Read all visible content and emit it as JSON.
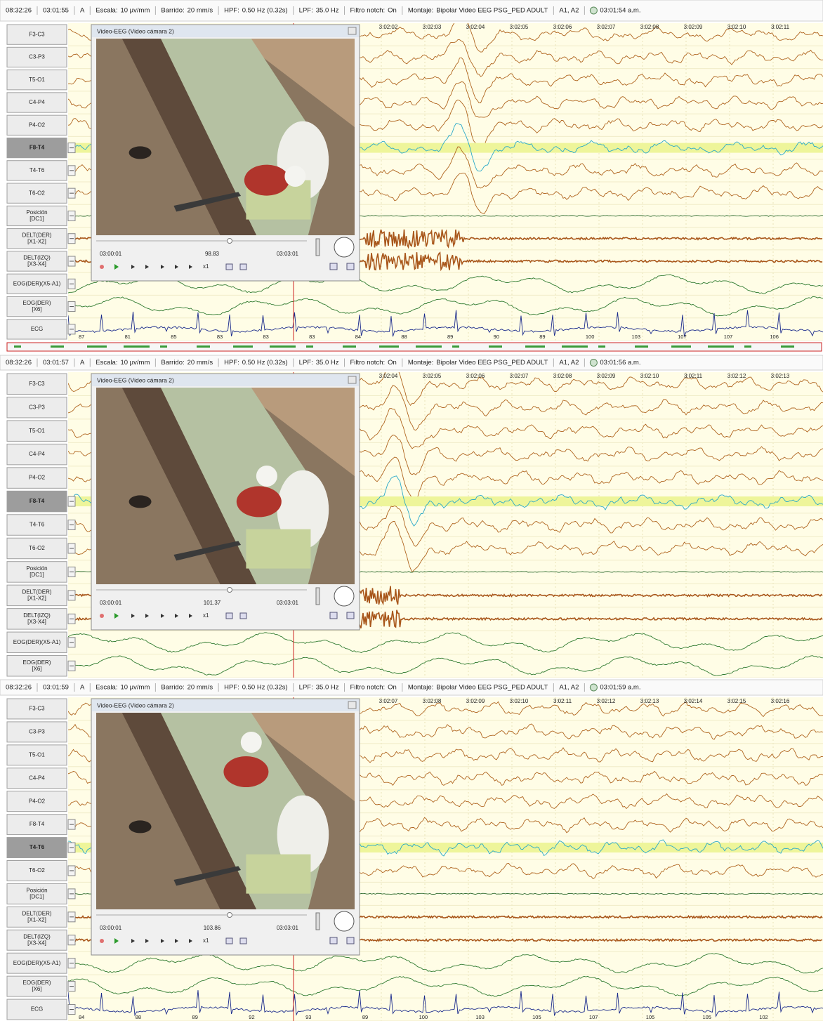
{
  "panels": [
    {
      "toolbar": [
        "08:32:26",
        "03:01:55",
        "A",
        "Escala:",
        "10 µv/mm",
        "Barrido:",
        "20 mm/s",
        "HPF:",
        "0.50 Hz (0.32s)",
        "LPF:",
        "35.0 Hz",
        "Filtro notch:",
        "On",
        "Montaje:",
        "Bipolar Video EEG PSG_PED ADULT",
        "A1, A2",
        "03:01:54 a.m."
      ],
      "channels": [
        [
          "F3-C3"
        ],
        [
          "C3-P3"
        ],
        [
          "T5-O1"
        ],
        [
          "C4-P4"
        ],
        [
          "P4-O2"
        ],
        [
          "F8-T4"
        ],
        [
          "T4-T6"
        ],
        [
          "T6-O2"
        ],
        [
          "Posición",
          "[DC1]"
        ],
        [
          "DELT(DER)",
          "[X1-X2]"
        ],
        [
          "DELT(IZQ)",
          "[X3-X4]"
        ],
        [
          "EOG(DER)(X5-A1)"
        ],
        [
          "EOG(DER)",
          "[X6]"
        ],
        [
          "ECG"
        ]
      ],
      "selected_channel": 5,
      "time_ticks": [
        "3:02:02",
        "3:02:03",
        "3:02:04",
        "3:02:05",
        "3:02:06",
        "3:02:07",
        "3:02:08",
        "3:02:09",
        "3:02:10",
        "3:02:11"
      ],
      "video": {
        "title": "Video-EEG (Video cámara 2)",
        "start": "03:00:01",
        "current": "98.83",
        "end": "03:03:01",
        "speed": "x1"
      },
      "ecg_labels": [
        "87",
        "81",
        "85",
        "83",
        "83",
        "83",
        "84",
        "88",
        "89",
        "90",
        "89",
        "100",
        "103",
        "107",
        "107",
        "106"
      ]
    },
    {
      "toolbar": [
        "08:32:26",
        "03:01:57",
        "A",
        "Escala:",
        "10 µv/mm",
        "Barrido:",
        "20 mm/s",
        "HPF:",
        "0.50 Hz (0.32s)",
        "LPF:",
        "35.0 Hz",
        "Filtro notch:",
        "On",
        "Montaje:",
        "Bipolar Video EEG PSG_PED ADULT",
        "A1, A2",
        "03:01:56 a.m."
      ],
      "channels": [
        [
          "F3-C3"
        ],
        [
          "C3-P3"
        ],
        [
          "T5-O1"
        ],
        [
          "C4-P4"
        ],
        [
          "P4-O2"
        ],
        [
          "F8-T4"
        ],
        [
          "T4-T6"
        ],
        [
          "T6-O2"
        ],
        [
          "Posición",
          "[DC1]"
        ],
        [
          "DELT(DER)",
          "[X1-X2]"
        ],
        [
          "DELT(IZQ)",
          "[X3-X4]"
        ],
        [
          "EOG(DER)(X5-A1)"
        ],
        [
          "EOG(DER)",
          "[X6]"
        ]
      ],
      "selected_channel": 5,
      "time_ticks": [
        "3:02:04",
        "3:02:05",
        "3:02:06",
        "3:02:07",
        "3:02:08",
        "3:02:09",
        "3:02:10",
        "3:02:11",
        "3:02:12",
        "3:02:13"
      ],
      "video": {
        "title": "Video-EEG (Video cámara 2)",
        "start": "03:00:01",
        "current": "101.37",
        "end": "03:03:01",
        "speed": "x1"
      }
    },
    {
      "toolbar": [
        "08:32:26",
        "03:01:59",
        "A",
        "Escala:",
        "10 µv/mm",
        "Barrido:",
        "20 mm/s",
        "HPF:",
        "0.50 Hz (0.32s)",
        "LPF:",
        "35.0 Hz",
        "Filtro notch:",
        "On",
        "Montaje:",
        "Bipolar Video EEG PSG_PED ADULT",
        "A1, A2",
        "03:01:59 a.m."
      ],
      "channels": [
        [
          "F3-C3"
        ],
        [
          "C3-P3"
        ],
        [
          "T5-O1"
        ],
        [
          "C4-P4"
        ],
        [
          "P4-O2"
        ],
        [
          "F8-T4"
        ],
        [
          "T4-T6"
        ],
        [
          "T6-O2"
        ],
        [
          "Posición",
          "[DC1]"
        ],
        [
          "DELT(DER)",
          "[X1-X2]"
        ],
        [
          "DELT(IZQ)",
          "[X3-X4]"
        ],
        [
          "EOG(DER)(X5-A1)"
        ],
        [
          "EOG(DER)",
          "[X6]"
        ],
        [
          "ECG"
        ]
      ],
      "selected_channel": 6,
      "time_ticks": [
        "3:02:07",
        "3:02:08",
        "3:02:09",
        "3:02:10",
        "3:02:11",
        "3:02:12",
        "3:02:13",
        "3:02:14",
        "3:02:15",
        "3:02:16"
      ],
      "video": {
        "title": "Video-EEG (Video cámara 2)",
        "start": "03:00:01",
        "current": "103.86",
        "end": "03:03:01",
        "speed": "x1"
      },
      "ecg_labels": [
        "84",
        "88",
        "89",
        "92",
        "93",
        "89",
        "100",
        "103",
        "105",
        "107",
        "105",
        "105",
        "102"
      ]
    }
  ]
}
